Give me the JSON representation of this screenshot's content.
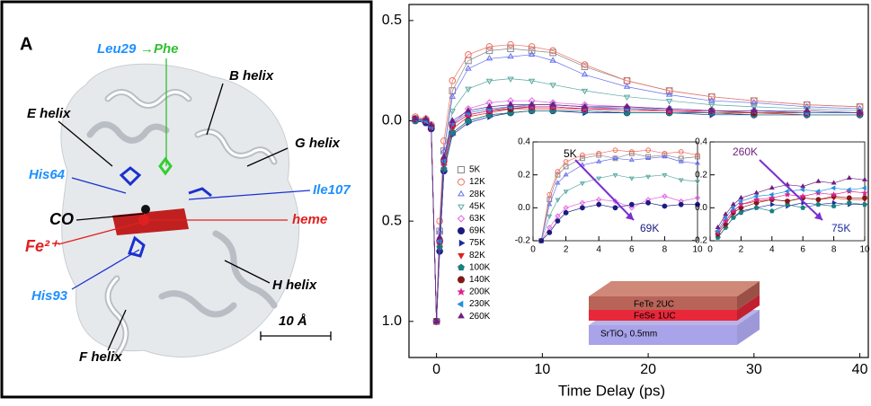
{
  "figure_a": {
    "panel_label": "A",
    "labels": {
      "mutation_from": "Leu29",
      "mutation_to": "→Phe",
      "b_helix": "B helix",
      "e_helix": "E helix",
      "g_helix": "G helix",
      "his64": "His64",
      "ile107": "Ile107",
      "co": "CO",
      "heme": "heme",
      "fe": "Fe²⁺",
      "h_helix": "H helix",
      "his93": "His93",
      "scale": "10 Å",
      "f_helix": "F helix"
    }
  },
  "layers": {
    "top": "FeTe  2UC",
    "middle": "FeSe  1UC",
    "substrate": "SrTiO₃  0.5mm"
  },
  "chart_data": [
    {
      "type": "scatter",
      "xlabel": "Time Delay (ps)",
      "xlim": [
        -2.6,
        40.8
      ],
      "ylim": [
        -1.18,
        0.58
      ],
      "xticks": [
        0,
        10,
        20,
        30,
        40
      ],
      "yticks": [
        0.5,
        {
          "value": 0,
          "label": "0.0"
        },
        {
          "value": -0.5,
          "label": "0.5"
        },
        {
          "value": -1,
          "label": "1.0"
        }
      ],
      "legend": "lower-left",
      "grid": false,
      "x": [
        -2,
        -1,
        -0.5,
        0,
        0.3,
        0.7,
        1.5,
        3,
        5,
        7,
        9,
        11,
        14,
        18,
        22,
        26,
        30,
        35,
        40
      ],
      "series": [
        {
          "name": "5K",
          "color": "#888888",
          "marker": "square",
          "filled": false,
          "values": [
            0.01,
            0,
            -0.03,
            -1,
            -0.55,
            -0.15,
            0.15,
            0.3,
            0.35,
            0.36,
            0.35,
            0.34,
            0.27,
            0.2,
            0.15,
            0.12,
            0.1,
            0.08,
            0.07
          ]
        },
        {
          "name": "12K",
          "color": "#f07060",
          "marker": "circle",
          "filled": false,
          "values": [
            0.02,
            0.01,
            -0.02,
            -1,
            -0.5,
            -0.1,
            0.2,
            0.33,
            0.37,
            0.38,
            0.37,
            0.35,
            0.28,
            0.2,
            0.15,
            0.12,
            0.1,
            0.08,
            0.07
          ]
        },
        {
          "name": "28K",
          "color": "#6670f0",
          "marker": "triangle-up",
          "filled": false,
          "values": [
            0.01,
            0,
            -0.03,
            -1,
            -0.55,
            -0.15,
            0.12,
            0.26,
            0.31,
            0.32,
            0.33,
            0.3,
            0.23,
            0.17,
            0.13,
            0.1,
            0.09,
            0.07,
            0.06
          ]
        },
        {
          "name": "45K",
          "color": "#5aa8a0",
          "marker": "triangle-down",
          "filled": false,
          "values": [
            0.01,
            0,
            -0.03,
            -1,
            -0.6,
            -0.2,
            0.05,
            0.16,
            0.2,
            0.21,
            0.2,
            0.18,
            0.15,
            0.12,
            0.1,
            0.08,
            0.07,
            0.06,
            0.05
          ]
        },
        {
          "name": "63K",
          "color": "#e060e0",
          "marker": "diamond",
          "filled": false,
          "values": [
            0,
            0,
            -0.03,
            -1,
            -0.6,
            -0.22,
            -0.02,
            0.06,
            0.09,
            0.1,
            0.1,
            0.09,
            0.08,
            0.07,
            0.06,
            0.05,
            0.05,
            0.04,
            0.04
          ]
        },
        {
          "name": "69K",
          "color": "#1a1a80",
          "marker": "circle",
          "filled": true,
          "values": [
            0,
            -0.01,
            -0.04,
            -1,
            -0.65,
            -0.25,
            -0.06,
            0,
            0.03,
            0.04,
            0.05,
            0.05,
            0.05,
            0.04,
            0.04,
            0.04,
            0.03,
            0.03,
            0.03
          ]
        },
        {
          "name": "75K",
          "color": "#1a2aa0",
          "marker": "triangle-right",
          "filled": true,
          "values": [
            0,
            -0.01,
            -0.04,
            -1,
            -0.65,
            -0.25,
            -0.07,
            -0.01,
            0.02,
            0.04,
            0.05,
            0.05,
            0.04,
            0.04,
            0.04,
            0.03,
            0.03,
            0.03,
            0.03
          ]
        },
        {
          "name": "82K",
          "color": "#e02020",
          "marker": "triangle-down",
          "filled": true,
          "values": [
            0.01,
            0,
            -0.03,
            -1,
            -0.62,
            -0.22,
            -0.04,
            0.02,
            0.04,
            0.06,
            0.06,
            0.06,
            0.06,
            0.05,
            0.05,
            0.04,
            0.04,
            0.03,
            0.03
          ]
        },
        {
          "name": "100K",
          "color": "#1a8080",
          "marker": "pentagon",
          "filled": true,
          "values": [
            0,
            0,
            -0.03,
            -1,
            -0.63,
            -0.24,
            -0.06,
            0,
            0.03,
            0.04,
            0.05,
            0.05,
            0.05,
            0.04,
            0.04,
            0.04,
            0.03,
            0.03,
            0.03
          ]
        },
        {
          "name": "140K",
          "color": "#801818",
          "marker": "circle",
          "filled": true,
          "values": [
            0.01,
            0,
            -0.03,
            -1,
            -0.6,
            -0.2,
            -0.02,
            0.03,
            0.05,
            0.06,
            0.07,
            0.07,
            0.06,
            0.06,
            0.05,
            0.05,
            0.04,
            0.04,
            0.04
          ]
        },
        {
          "name": "200K",
          "color": "#e02090",
          "marker": "star",
          "filled": true,
          "values": [
            0.01,
            0,
            -0.03,
            -1,
            -0.6,
            -0.2,
            -0.02,
            0.03,
            0.05,
            0.07,
            0.07,
            0.07,
            0.06,
            0.06,
            0.05,
            0.05,
            0.05,
            0.04,
            0.04
          ]
        },
        {
          "name": "230K",
          "color": "#2090e0",
          "marker": "triangle-left",
          "filled": true,
          "values": [
            0.01,
            0,
            -0.03,
            -1,
            -0.6,
            -0.2,
            -0.01,
            0.04,
            0.06,
            0.07,
            0.08,
            0.08,
            0.07,
            0.06,
            0.06,
            0.05,
            0.05,
            0.04,
            0.04
          ]
        },
        {
          "name": "260K",
          "color": "#702080",
          "marker": "triangle-up",
          "filled": true,
          "values": [
            0.01,
            0.01,
            -0.02,
            -1,
            -0.58,
            -0.18,
            0,
            0.05,
            0.07,
            0.08,
            0.08,
            0.08,
            0.07,
            0.07,
            0.06,
            0.05,
            0.05,
            0.05,
            0.04
          ]
        }
      ]
    },
    {
      "type": "scatter",
      "xlim": [
        0,
        10
      ],
      "ylim": [
        -0.2,
        0.4
      ],
      "xticks": [
        0,
        2,
        4,
        6,
        8,
        10
      ],
      "yticks": [
        -0.2,
        {
          "value": 0,
          "label": "0.0"
        },
        0.2,
        0.4
      ],
      "annotations": [
        {
          "text": "5K",
          "color": "#000000"
        },
        {
          "text": "69K",
          "color": "#1a1a80"
        }
      ],
      "x": [
        0.5,
        1,
        1.5,
        2,
        3,
        4,
        5,
        6,
        7,
        8,
        9,
        10
      ],
      "series": [
        {
          "color": "#888888",
          "marker": "square",
          "filled": false,
          "values": [
            -0.2,
            0.05,
            0.2,
            0.25,
            0.3,
            0.32,
            0.3,
            0.33,
            0.31,
            0.32,
            0.3,
            0.31
          ]
        },
        {
          "color": "#f07060",
          "marker": "circle",
          "filled": false,
          "values": [
            -0.2,
            0.08,
            0.22,
            0.28,
            0.32,
            0.33,
            0.35,
            0.34,
            0.35,
            0.33,
            0.34,
            0.32
          ]
        },
        {
          "color": "#6670f0",
          "marker": "triangle-up",
          "filled": false,
          "values": [
            -0.2,
            0.02,
            0.15,
            0.2,
            0.26,
            0.28,
            0.3,
            0.29,
            0.3,
            0.31,
            0.28,
            0.27
          ]
        },
        {
          "color": "#5aa8a0",
          "marker": "triangle-down",
          "filled": false,
          "values": [
            -0.2,
            -0.05,
            0.05,
            0.1,
            0.15,
            0.18,
            0.2,
            0.18,
            0.19,
            0.2,
            0.17,
            0.16
          ]
        },
        {
          "color": "#e060e0",
          "marker": "diamond",
          "filled": false,
          "values": [
            -0.2,
            -0.12,
            -0.05,
            0,
            0.03,
            0.05,
            0.04,
            0,
            0.05,
            0.07,
            0.04,
            0.06
          ]
        },
        {
          "color": "#1a1a80",
          "marker": "circle",
          "filled": true,
          "values": [
            -0.2,
            -0.15,
            -0.08,
            -0.03,
            0,
            0.02,
            0,
            0.02,
            0.03,
            0.01,
            0.02,
            0.02
          ]
        }
      ]
    },
    {
      "type": "scatter",
      "xlim": [
        0,
        10
      ],
      "ylim": [
        -0.2,
        0.4
      ],
      "xticks": [
        0,
        2,
        4,
        6,
        8,
        10
      ],
      "yticks": [
        -0.2,
        {
          "value": 0,
          "label": "0.0"
        },
        0.2,
        0.4
      ],
      "annotations": [
        {
          "text": "260K",
          "color": "#702080"
        },
        {
          "text": "75K",
          "color": "#1a2aa0"
        }
      ],
      "x": [
        0.5,
        1,
        1.5,
        2,
        3,
        4,
        5,
        6,
        7,
        8,
        9,
        10
      ],
      "series": [
        {
          "color": "#1a2aa0",
          "marker": "triangle-right",
          "filled": true,
          "values": [
            -0.18,
            -0.12,
            -0.06,
            -0.02,
            0,
            0.02,
            0.01,
            0.03,
            0.02,
            0.03,
            0.02,
            0.02
          ]
        },
        {
          "color": "#e02020",
          "marker": "triangle-down",
          "filled": true,
          "values": [
            -0.15,
            -0.08,
            -0.02,
            0.02,
            0.04,
            0.05,
            0.04,
            0.06,
            0.05,
            0.06,
            0.05,
            0.05
          ]
        },
        {
          "color": "#1a8080",
          "marker": "pentagon",
          "filled": true,
          "values": [
            -0.18,
            -0.12,
            -0.06,
            -0.03,
            0,
            -0.02,
            0.02,
            0,
            0.02,
            0.01,
            0.03,
            0.02
          ]
        },
        {
          "color": "#801818",
          "marker": "circle",
          "filled": true,
          "values": [
            -0.16,
            -0.1,
            -0.03,
            0,
            0.03,
            0.05,
            0.04,
            0.06,
            0.05,
            0.07,
            0.06,
            0.06
          ]
        },
        {
          "color": "#e02090",
          "marker": "star",
          "filled": true,
          "values": [
            -0.15,
            -0.08,
            -0.02,
            0.02,
            0.05,
            0.06,
            0.08,
            0.07,
            0.09,
            0.08,
            0.1,
            0.09
          ]
        },
        {
          "color": "#2090e0",
          "marker": "triangle-left",
          "filled": true,
          "values": [
            -0.14,
            -0.06,
            0,
            0.04,
            0.07,
            0.08,
            0.1,
            0.11,
            0.1,
            0.12,
            0.11,
            0.12
          ]
        },
        {
          "color": "#702080",
          "marker": "triangle-up",
          "filled": true,
          "values": [
            -0.12,
            -0.04,
            0.02,
            0.06,
            0.09,
            0.12,
            0.14,
            0.13,
            0.16,
            0.15,
            0.18,
            0.17
          ]
        }
      ]
    }
  ]
}
